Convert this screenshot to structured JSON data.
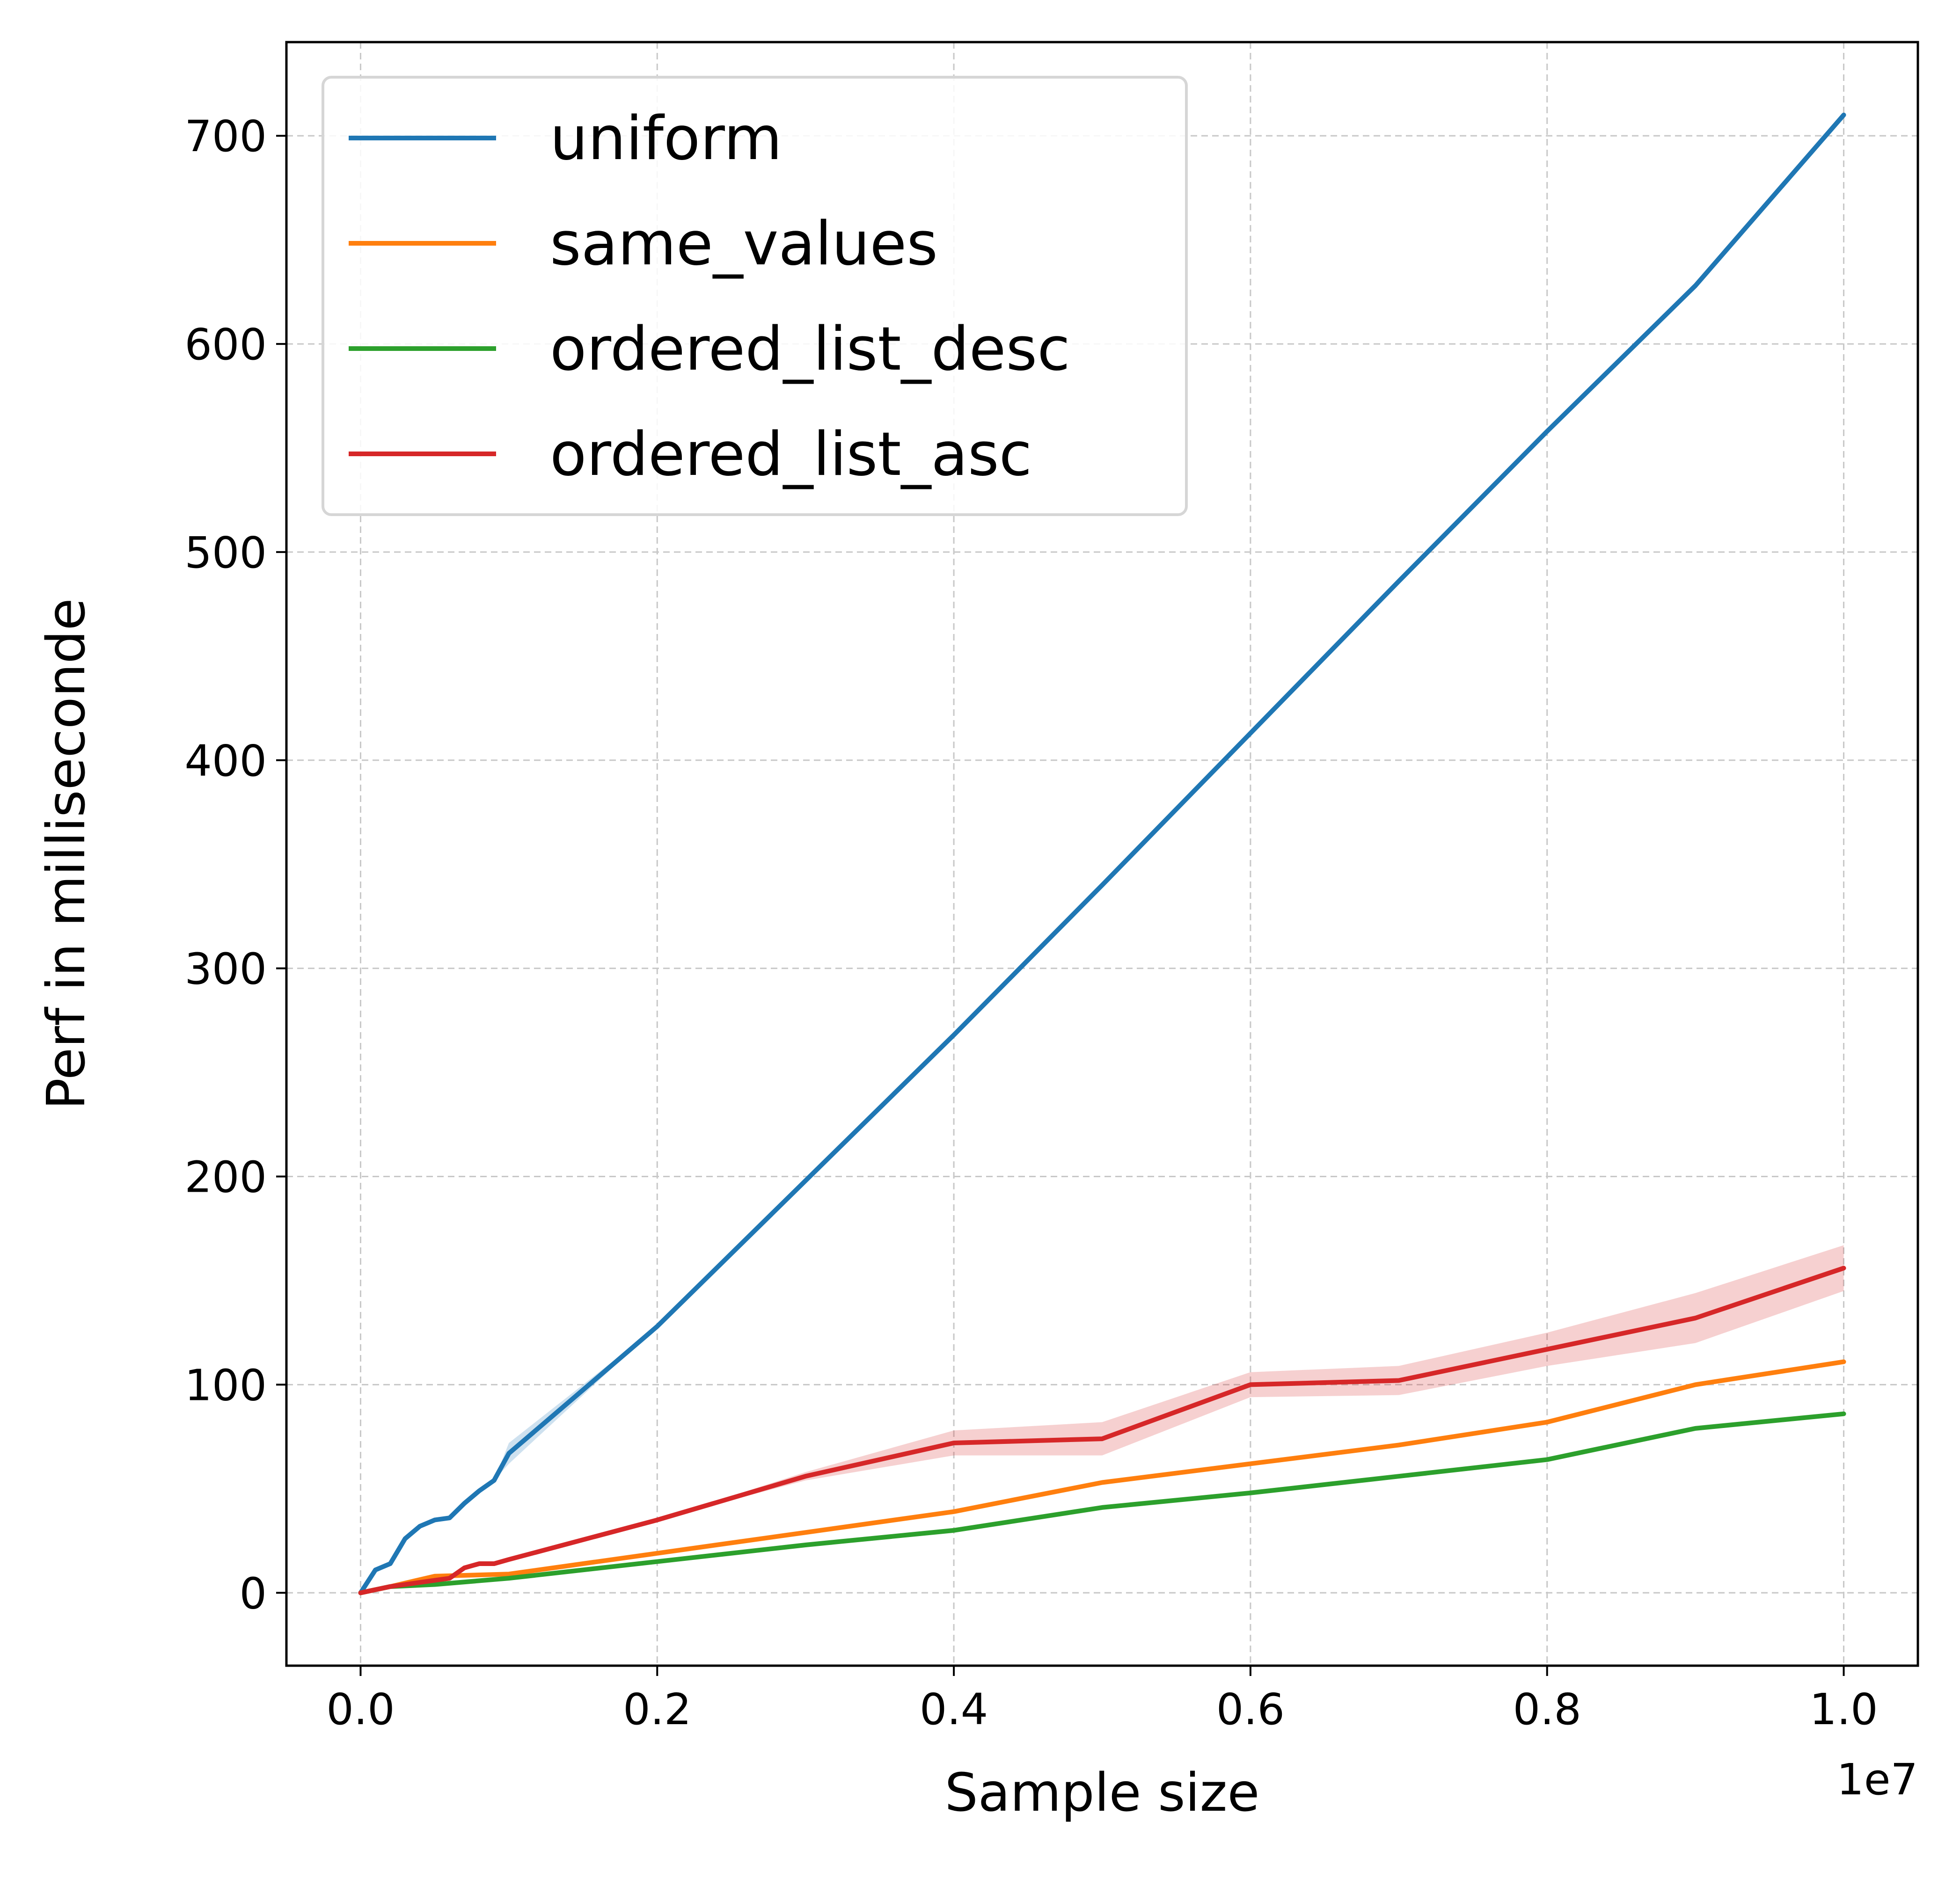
{
  "chart_data": {
    "type": "line",
    "title": "",
    "xlabel": "Sample size",
    "ylabel": "Perf in milliseconde",
    "x_offset_label": "1e7",
    "xlim": [
      -0.05,
      1.05
    ],
    "ylim": [
      -35,
      745
    ],
    "x_ticks": [
      0.0,
      0.2,
      0.4,
      0.6,
      0.8,
      1.0
    ],
    "x_tick_labels": [
      "0.0",
      "0.2",
      "0.4",
      "0.6",
      "0.8",
      "1.0"
    ],
    "y_ticks": [
      0,
      100,
      200,
      300,
      400,
      500,
      600,
      700
    ],
    "y_tick_labels": [
      "0",
      "100",
      "200",
      "300",
      "400",
      "500",
      "600",
      "700"
    ],
    "grid": true,
    "legend_position": "top-left",
    "series": [
      {
        "name": "uniform",
        "color": "#1f77b4",
        "x": [
          0.0,
          0.01,
          0.02,
          0.03,
          0.04,
          0.05,
          0.06,
          0.07,
          0.08,
          0.09,
          0.1,
          0.2,
          0.3,
          0.4,
          0.5,
          0.6,
          0.7,
          0.8,
          0.9,
          1.0
        ],
        "y": [
          0,
          11,
          14,
          26,
          32,
          35,
          36,
          43,
          49,
          54,
          67,
          128,
          198,
          268,
          340,
          413,
          486,
          558,
          628,
          710
        ],
        "band": [
          0,
          0,
          0,
          0,
          0,
          0,
          0,
          0,
          0,
          0,
          5,
          0,
          0,
          0,
          0,
          0,
          0,
          0,
          0,
          0
        ]
      },
      {
        "name": "same_values",
        "color": "#ff7f0e",
        "x": [
          0.0,
          0.02,
          0.05,
          0.1,
          0.2,
          0.3,
          0.4,
          0.5,
          0.6,
          0.7,
          0.8,
          0.9,
          1.0
        ],
        "y": [
          0,
          3,
          8,
          9,
          19,
          29,
          39,
          53,
          62,
          71,
          82,
          100,
          111
        ],
        "band": [
          0,
          0,
          0,
          0,
          0,
          0,
          0,
          0,
          0,
          0,
          0,
          0,
          0
        ]
      },
      {
        "name": "ordered_list_desc",
        "color": "#2ca02c",
        "x": [
          0.0,
          0.02,
          0.05,
          0.1,
          0.2,
          0.3,
          0.4,
          0.5,
          0.6,
          0.7,
          0.8,
          0.9,
          1.0
        ],
        "y": [
          0,
          3,
          4,
          7,
          15,
          23,
          30,
          41,
          48,
          56,
          64,
          79,
          86
        ],
        "band": [
          0,
          0,
          0,
          0,
          0,
          0,
          0,
          0,
          0,
          0,
          0,
          0,
          0
        ]
      },
      {
        "name": "ordered_list_asc",
        "color": "#d62728",
        "x": [
          0.0,
          0.02,
          0.05,
          0.06,
          0.07,
          0.08,
          0.09,
          0.1,
          0.2,
          0.3,
          0.4,
          0.5,
          0.6,
          0.7,
          0.8,
          0.9,
          1.0
        ],
        "y": [
          0,
          3,
          6,
          7,
          12,
          14,
          14,
          16,
          35,
          56,
          72,
          74,
          100,
          102,
          117,
          132,
          156
        ],
        "band": [
          0,
          0,
          0,
          0,
          0,
          0,
          0,
          0,
          0,
          2,
          6,
          8,
          6,
          7,
          8,
          12,
          11
        ]
      }
    ]
  }
}
